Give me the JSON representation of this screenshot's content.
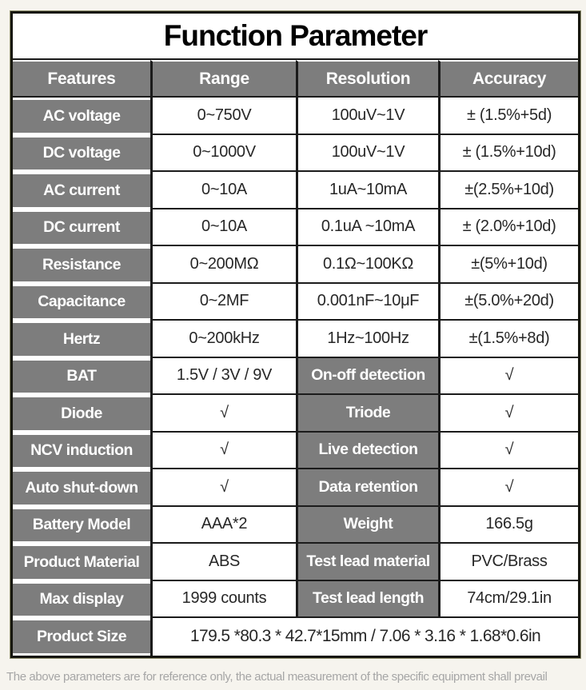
{
  "page": {
    "title": "Function Parameter",
    "footer_note": "The above parameters are for reference only, the actual measurement of the specific equipment shall prevail"
  },
  "table": {
    "headers": [
      "Features",
      "Range",
      "Resolution",
      "Accuracy"
    ],
    "spec_rows": [
      {
        "feature": "AC voltage",
        "range": "0~750V",
        "resolution": "100uV~1V",
        "accuracy": "± (1.5%+5d)"
      },
      {
        "feature": "DC voltage",
        "range": "0~1000V",
        "resolution": "100uV~1V",
        "accuracy": "± (1.5%+10d)"
      },
      {
        "feature": "AC current",
        "range": "0~10A",
        "resolution": "1uA~10mA",
        "accuracy": "±(2.5%+10d)"
      },
      {
        "feature": "DC current",
        "range": "0~10A",
        "resolution": "0.1uA ~10mA",
        "accuracy": "± (2.0%+10d)"
      },
      {
        "feature": "Resistance",
        "range": "0~200MΩ",
        "resolution": "0.1Ω~100KΩ",
        "accuracy": "±(5%+10d)"
      },
      {
        "feature": "Capacitance",
        "range": "0~2MF",
        "resolution": "0.001nF~10μF",
        "accuracy": "±(5.0%+20d)"
      },
      {
        "feature": "Hertz",
        "range": "0~200kHz",
        "resolution": "1Hz~100Hz",
        "accuracy": "±(1.5%+8d)"
      }
    ],
    "dual_rows": [
      {
        "label_left": "BAT",
        "value_left": "1.5V / 3V / 9V",
        "label_right": "On-off detection",
        "value_right": "√"
      },
      {
        "label_left": "Diode",
        "value_left": "√",
        "label_right": "Triode",
        "value_right": "√"
      },
      {
        "label_left": "NCV induction",
        "value_left": "√",
        "label_right": "Live detection",
        "value_right": "√"
      },
      {
        "label_left": "Auto shut-down",
        "value_left": "√",
        "label_right": "Data retention",
        "value_right": "√"
      },
      {
        "label_left": "Battery Model",
        "value_left": "AAA*2",
        "label_right": "Weight",
        "value_right": "166.5g"
      },
      {
        "label_left": "Product Material",
        "value_left": "ABS",
        "label_right": "Test lead material",
        "value_right": "PVC/Brass"
      },
      {
        "label_left": "Max display",
        "value_left": "1999 counts",
        "label_right": "Test lead length",
        "value_right": "74cm/29.1in"
      }
    ],
    "size_row": {
      "label": "Product Size",
      "value": "179.5 *80.3 * 42.7*15mm / 7.06 * 3.16 * 1.68*0.6in"
    }
  },
  "colors": {
    "cell_gray": "#7d7d7d",
    "grid_black": "#1b1b1b",
    "page_bg": "#f6f4ee",
    "value_text": "#272727",
    "footer_text": "#a6a6a6"
  }
}
